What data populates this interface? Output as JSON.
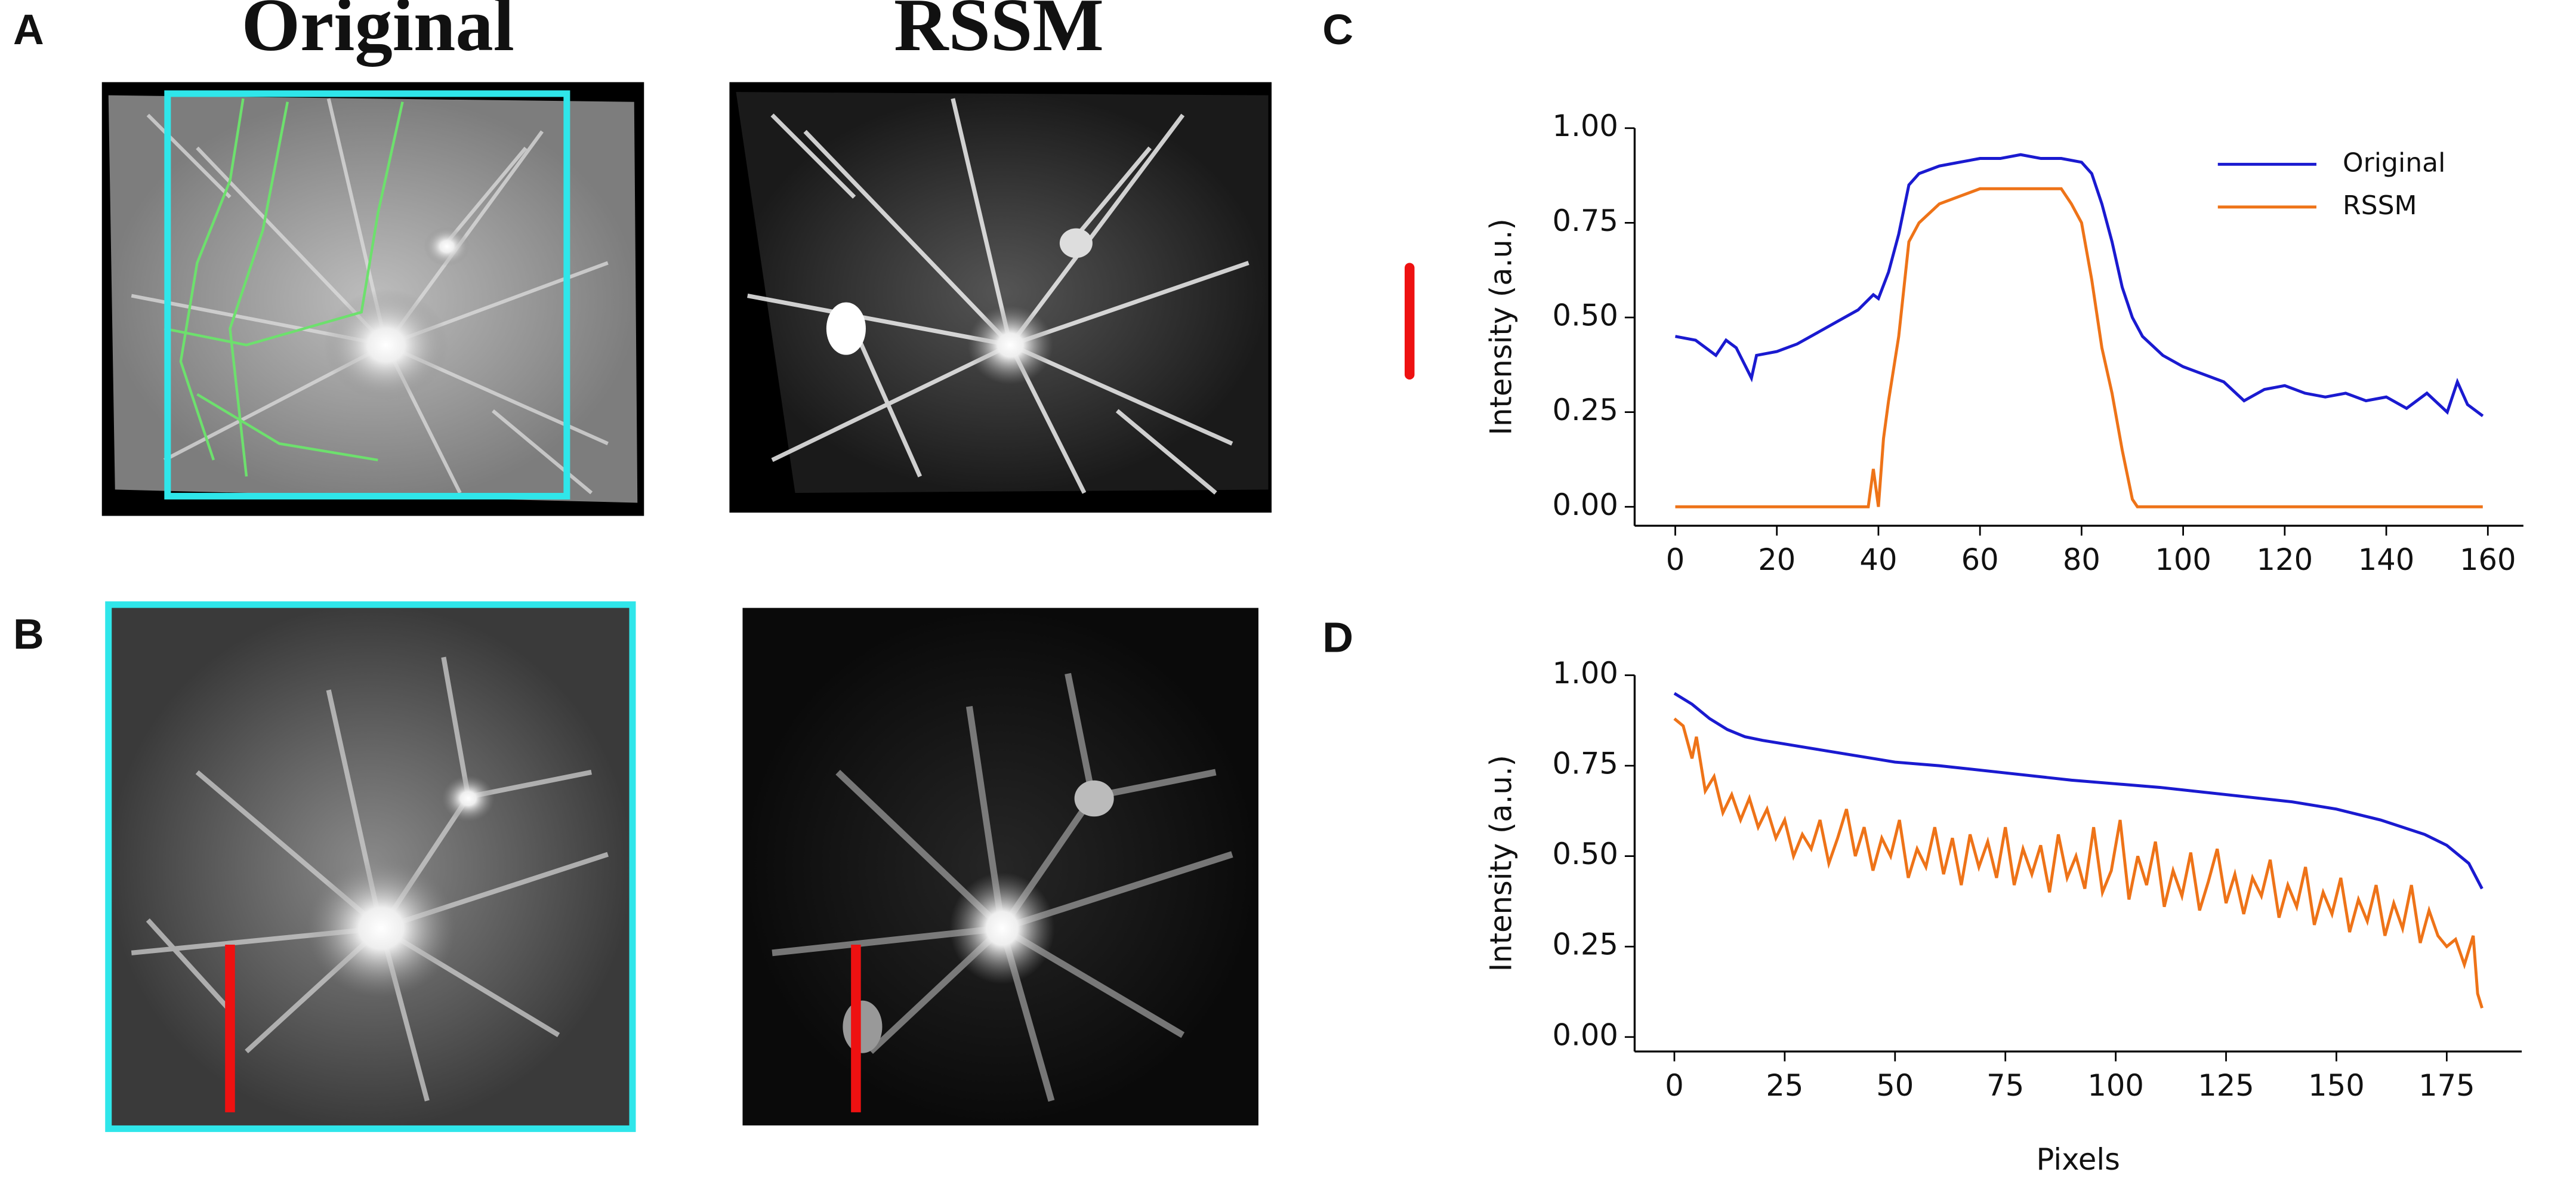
{
  "panel_labels": [
    "A",
    "B",
    "C",
    "D"
  ],
  "image_titles": [
    "Original",
    "RSSM"
  ],
  "chart_data": [
    {
      "type": "line",
      "ylabel": "Intensity (a.u.)",
      "legend": "upper right",
      "xlim": [
        -8,
        167
      ],
      "xticks": [
        0,
        20,
        40,
        60,
        80,
        100,
        120,
        140,
        160
      ],
      "ylim": [
        -0.05,
        1.0
      ],
      "yticks": [
        {
          "value": 0,
          "label": "0.00"
        },
        {
          "value": 0.25,
          "label": "0.25"
        },
        {
          "value": 0.5,
          "label": "0.50"
        },
        {
          "value": 0.75,
          "label": "0.75"
        },
        {
          "value": 1,
          "label": "1.00"
        }
      ],
      "series": [
        {
          "name": "Original",
          "color": "#1a1ad0",
          "x": [
            0,
            4,
            8,
            10,
            12,
            15,
            16,
            20,
            24,
            28,
            32,
            36,
            39,
            40,
            42,
            44,
            46,
            48,
            52,
            56,
            60,
            64,
            68,
            72,
            76,
            80,
            82,
            84,
            86,
            88,
            90,
            92,
            96,
            100,
            104,
            108,
            112,
            116,
            120,
            124,
            128,
            132,
            136,
            140,
            144,
            148,
            152,
            154,
            156,
            159
          ],
          "values": [
            0.45,
            0.44,
            0.4,
            0.44,
            0.42,
            0.34,
            0.4,
            0.41,
            0.43,
            0.46,
            0.49,
            0.52,
            0.56,
            0.55,
            0.62,
            0.72,
            0.85,
            0.88,
            0.9,
            0.91,
            0.92,
            0.92,
            0.93,
            0.92,
            0.92,
            0.91,
            0.88,
            0.8,
            0.7,
            0.58,
            0.5,
            0.45,
            0.4,
            0.37,
            0.35,
            0.33,
            0.28,
            0.31,
            0.32,
            0.3,
            0.29,
            0.3,
            0.28,
            0.29,
            0.26,
            0.3,
            0.25,
            0.33,
            0.27,
            0.24
          ]
        },
        {
          "name": "RSSM",
          "color": "#ee7318",
          "x": [
            0,
            38,
            39,
            40,
            41,
            42,
            44,
            46,
            48,
            52,
            56,
            60,
            64,
            68,
            72,
            76,
            78,
            80,
            82,
            84,
            86,
            88,
            90,
            91,
            100,
            159
          ],
          "values": [
            0,
            0,
            0.1,
            0,
            0.18,
            0.28,
            0.45,
            0.7,
            0.75,
            0.8,
            0.82,
            0.84,
            0.84,
            0.84,
            0.84,
            0.84,
            0.8,
            0.75,
            0.6,
            0.42,
            0.3,
            0.15,
            0.02,
            0,
            0,
            0
          ]
        }
      ]
    },
    {
      "type": "line",
      "ylabel": "Intensity (a.u.)",
      "xlabel": "Pixels",
      "xlim": [
        -9,
        192
      ],
      "xticks": [
        0,
        25,
        50,
        75,
        100,
        125,
        150,
        175
      ],
      "ylim": [
        -0.04,
        1.0
      ],
      "yticks": [
        {
          "value": 0,
          "label": "0.00"
        },
        {
          "value": 0.25,
          "label": "0.25"
        },
        {
          "value": 0.5,
          "label": "0.50"
        },
        {
          "value": 0.75,
          "label": "0.75"
        },
        {
          "value": 1,
          "label": "1.00"
        }
      ],
      "series": [
        {
          "color": "#1a1ad0",
          "x": [
            0,
            4,
            8,
            12,
            16,
            20,
            25,
            30,
            40,
            50,
            60,
            75,
            90,
            100,
            110,
            125,
            140,
            150,
            160,
            170,
            175,
            180,
            183
          ],
          "values": [
            0.95,
            0.92,
            0.88,
            0.85,
            0.83,
            0.82,
            0.81,
            0.8,
            0.78,
            0.76,
            0.75,
            0.73,
            0.71,
            0.7,
            0.69,
            0.67,
            0.65,
            0.63,
            0.6,
            0.56,
            0.53,
            0.48,
            0.41
          ]
        },
        {
          "color": "#ee7318",
          "x": [
            0,
            2,
            4,
            5,
            7,
            9,
            11,
            13,
            15,
            17,
            19,
            21,
            23,
            25,
            27,
            29,
            31,
            33,
            35,
            37,
            39,
            41,
            43,
            45,
            47,
            49,
            51,
            53,
            55,
            57,
            59,
            61,
            63,
            65,
            67,
            69,
            71,
            73,
            75,
            77,
            79,
            81,
            83,
            85,
            87,
            89,
            91,
            93,
            95,
            97,
            99,
            101,
            103,
            105,
            107,
            109,
            111,
            113,
            115,
            117,
            119,
            121,
            123,
            125,
            127,
            129,
            131,
            133,
            135,
            137,
            139,
            141,
            143,
            145,
            147,
            149,
            151,
            153,
            155,
            157,
            159,
            161,
            163,
            165,
            167,
            169,
            171,
            173,
            175,
            177,
            179,
            181,
            182,
            183
          ],
          "values": [
            0.88,
            0.86,
            0.77,
            0.83,
            0.68,
            0.72,
            0.62,
            0.67,
            0.6,
            0.66,
            0.58,
            0.63,
            0.55,
            0.6,
            0.5,
            0.56,
            0.52,
            0.6,
            0.48,
            0.55,
            0.63,
            0.5,
            0.58,
            0.46,
            0.55,
            0.5,
            0.6,
            0.44,
            0.52,
            0.47,
            0.58,
            0.45,
            0.55,
            0.42,
            0.56,
            0.47,
            0.54,
            0.44,
            0.58,
            0.42,
            0.52,
            0.45,
            0.53,
            0.4,
            0.56,
            0.44,
            0.5,
            0.41,
            0.58,
            0.4,
            0.46,
            0.6,
            0.38,
            0.5,
            0.42,
            0.54,
            0.36,
            0.46,
            0.39,
            0.51,
            0.35,
            0.43,
            0.52,
            0.37,
            0.45,
            0.34,
            0.44,
            0.39,
            0.49,
            0.33,
            0.42,
            0.36,
            0.47,
            0.31,
            0.4,
            0.34,
            0.44,
            0.29,
            0.38,
            0.32,
            0.42,
            0.28,
            0.37,
            0.3,
            0.42,
            0.26,
            0.35,
            0.28,
            0.25,
            0.27,
            0.2,
            0.28,
            0.12,
            0.08
          ]
        }
      ]
    }
  ]
}
